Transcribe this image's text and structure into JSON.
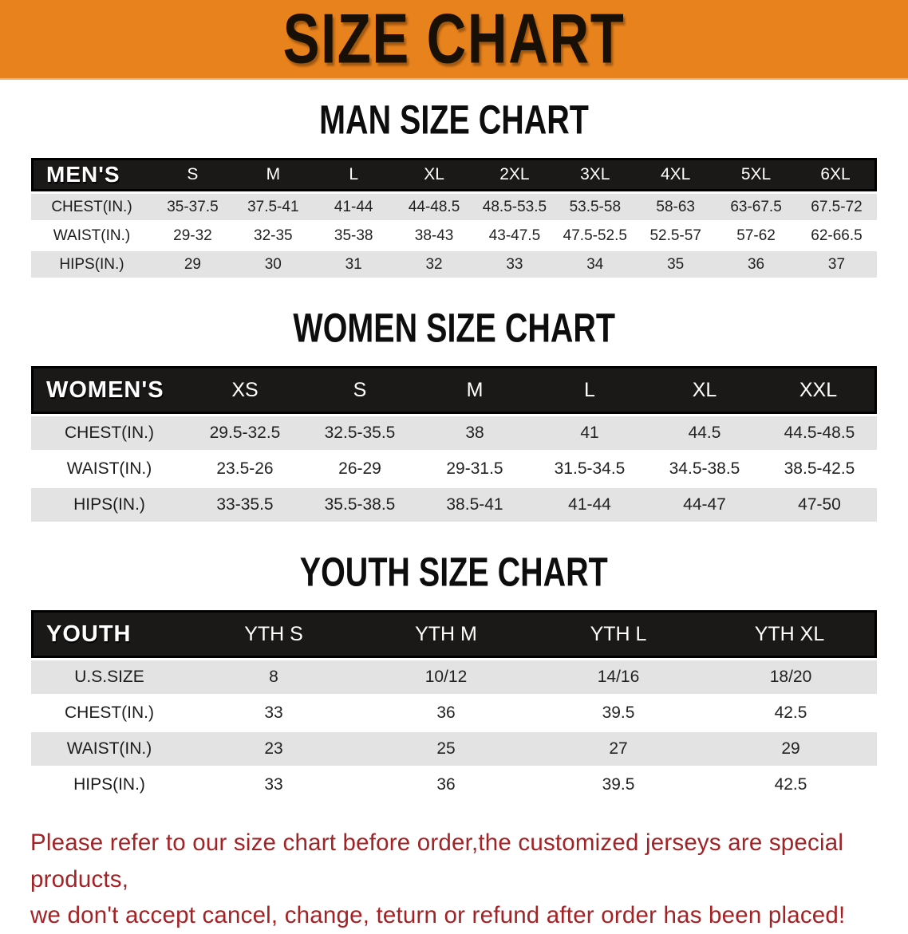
{
  "colors": {
    "accent_orange": "#e8821c",
    "header_bar_black": "#1b1918",
    "row_stripe_gray": "#e3e3e3",
    "warning_red": "#a32226"
  },
  "banner": {
    "title": "SIZE CHART"
  },
  "sections": [
    {
      "heading": "MAN SIZE CHART",
      "table": {
        "label": "MEN'S",
        "columns": [
          "S",
          "M",
          "L",
          "XL",
          "2XL",
          "3XL",
          "4XL",
          "5XL",
          "6XL"
        ],
        "rows": [
          {
            "label": "CHEST(IN.)",
            "values": [
              "35-37.5",
              "37.5-41",
              "41-44",
              "44-48.5",
              "48.5-53.5",
              "53.5-58",
              "58-63",
              "63-67.5",
              "67.5-72"
            ]
          },
          {
            "label": "WAIST(IN.)",
            "values": [
              "29-32",
              "32-35",
              "35-38",
              "38-43",
              "43-47.5",
              "47.5-52.5",
              "52.5-57",
              "57-62",
              "62-66.5"
            ]
          },
          {
            "label": "HIPS(IN.)",
            "values": [
              "29",
              "30",
              "31",
              "32",
              "33",
              "34",
              "35",
              "36",
              "37"
            ]
          }
        ]
      }
    },
    {
      "heading": "WOMEN SIZE CHART",
      "table": {
        "label": "WOMEN'S",
        "columns": [
          "XS",
          "S",
          "M",
          "L",
          "XL",
          "XXL"
        ],
        "rows": [
          {
            "label": "CHEST(IN.)",
            "values": [
              "29.5-32.5",
              "32.5-35.5",
              "38",
              "41",
              "44.5",
              "44.5-48.5"
            ]
          },
          {
            "label": "WAIST(IN.)",
            "values": [
              "23.5-26",
              "26-29",
              "29-31.5",
              "31.5-34.5",
              "34.5-38.5",
              "38.5-42.5"
            ]
          },
          {
            "label": "HIPS(IN.)",
            "values": [
              "33-35.5",
              "35.5-38.5",
              "38.5-41",
              "41-44",
              "44-47",
              "47-50"
            ]
          }
        ]
      }
    },
    {
      "heading": "YOUTH SIZE CHART",
      "table": {
        "label": "YOUTH",
        "columns": [
          "YTH S",
          "YTH M",
          "YTH L",
          "YTH XL"
        ],
        "rows": [
          {
            "label": "U.S.SIZE",
            "values": [
              "8",
              "10/12",
              "14/16",
              "18/20"
            ]
          },
          {
            "label": "CHEST(IN.)",
            "values": [
              "33",
              "36",
              "39.5",
              "42.5"
            ]
          },
          {
            "label": "WAIST(IN.)",
            "values": [
              "23",
              "25",
              "27",
              "29"
            ]
          },
          {
            "label": "HIPS(IN.)",
            "values": [
              "33",
              "36",
              "39.5",
              "42.5"
            ]
          }
        ]
      }
    }
  ],
  "footer": {
    "line1": "Please refer to our size chart before order,the customized jerseys are special products,",
    "line2": "we don't accept cancel, change, teturn or refund after order has been placed!"
  }
}
